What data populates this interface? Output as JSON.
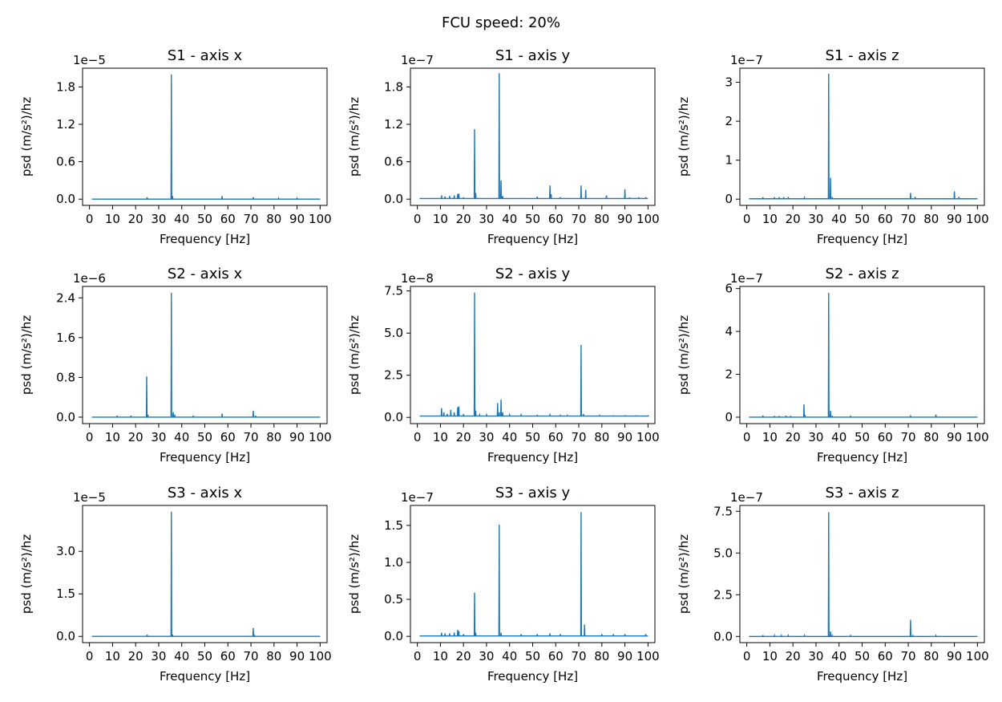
{
  "figure": {
    "suptitle": "FCU speed: 20%"
  },
  "style": {
    "line_color": "#1f77b4",
    "axis_color": "#000000",
    "background": "#ffffff"
  },
  "chart_data": [
    {
      "type": "line",
      "title": "S1 - axis x",
      "xlabel": "Frequency [Hz]",
      "ylabel": "psd (m/s²)/hz",
      "xlim": [
        -3,
        103
      ],
      "ylim": [
        -0.1,
        2.1
      ],
      "y_multiplier": "1e−5",
      "x_ticks": [
        0,
        10,
        20,
        30,
        40,
        50,
        60,
        70,
        80,
        90,
        100
      ],
      "y_ticks": [
        0.0,
        0.6,
        1.2,
        1.8
      ],
      "y_tick_labels": [
        "0.0",
        "0.6",
        "1.2",
        "1.8"
      ],
      "grid": false,
      "series": [
        {
          "baseline": 0.0,
          "peaks": [
            [
              25,
              0.03
            ],
            [
              35.5,
              2.0
            ],
            [
              36,
              0.05
            ],
            [
              57.5,
              0.05
            ],
            [
              71,
              0.03
            ],
            [
              82,
              0.015
            ],
            [
              90,
              0.015
            ]
          ]
        }
      ]
    },
    {
      "type": "line",
      "title": "S1 - axis y",
      "xlabel": "Frequency [Hz]",
      "ylabel": "psd (m/s²)/hz",
      "xlim": [
        -3,
        103
      ],
      "ylim": [
        -0.1,
        2.1
      ],
      "y_multiplier": "1e−7",
      "x_ticks": [
        0,
        10,
        20,
        30,
        40,
        50,
        60,
        70,
        80,
        90,
        100
      ],
      "y_ticks": [
        0.0,
        0.6,
        1.2,
        1.8
      ],
      "y_tick_labels": [
        "0.0",
        "0.6",
        "1.2",
        "1.8"
      ],
      "grid": false,
      "series": [
        {
          "baseline": 0.01,
          "peaks": [
            [
              10.5,
              0.06
            ],
            [
              12,
              0.04
            ],
            [
              14,
              0.05
            ],
            [
              16,
              0.06
            ],
            [
              17.5,
              0.08
            ],
            [
              18,
              0.09
            ],
            [
              20,
              0.03
            ],
            [
              24.8,
              1.12
            ],
            [
              25.3,
              0.1
            ],
            [
              35.5,
              2.02
            ],
            [
              36.3,
              0.3
            ],
            [
              37,
              0.05
            ],
            [
              52,
              0.04
            ],
            [
              57.5,
              0.22
            ],
            [
              58,
              0.08
            ],
            [
              62,
              0.03
            ],
            [
              71,
              0.22
            ],
            [
              73,
              0.15
            ],
            [
              82,
              0.06
            ],
            [
              90,
              0.16
            ],
            [
              92,
              0.03
            ],
            [
              96,
              0.03
            ],
            [
              99,
              0.03
            ]
          ]
        }
      ]
    },
    {
      "type": "line",
      "title": "S1 - axis z",
      "xlabel": "Frequency [Hz]",
      "ylabel": "psd (m/s²)/hz",
      "xlim": [
        -3,
        103
      ],
      "ylim": [
        -0.16,
        3.36
      ],
      "y_multiplier": "1e−7",
      "x_ticks": [
        0,
        10,
        20,
        30,
        40,
        50,
        60,
        70,
        80,
        90,
        100
      ],
      "y_ticks": [
        0,
        1,
        2,
        3
      ],
      "y_tick_labels": [
        "0",
        "1",
        "2",
        "3"
      ],
      "grid": false,
      "series": [
        {
          "baseline": 0.01,
          "peaks": [
            [
              7,
              0.05
            ],
            [
              12,
              0.05
            ],
            [
              14,
              0.05
            ],
            [
              16,
              0.05
            ],
            [
              18,
              0.06
            ],
            [
              25,
              0.04
            ],
            [
              35.5,
              3.22
            ],
            [
              36.3,
              0.55
            ],
            [
              37,
              0.05
            ],
            [
              71,
              0.16
            ],
            [
              73,
              0.06
            ],
            [
              90,
              0.2
            ],
            [
              92,
              0.06
            ]
          ]
        }
      ]
    },
    {
      "type": "line",
      "title": "S2 - axis x",
      "xlabel": "Frequency [Hz]",
      "ylabel": "psd (m/s²)/hz",
      "xlim": [
        -3,
        103
      ],
      "ylim": [
        -0.13,
        2.63
      ],
      "y_multiplier": "1e−6",
      "x_ticks": [
        0,
        10,
        20,
        30,
        40,
        50,
        60,
        70,
        80,
        90,
        100
      ],
      "y_ticks": [
        0.0,
        0.8,
        1.6,
        2.4
      ],
      "y_tick_labels": [
        "0.0",
        "0.8",
        "1.6",
        "2.4"
      ],
      "grid": false,
      "series": [
        {
          "baseline": 0.0,
          "peaks": [
            [
              12,
              0.03
            ],
            [
              18,
              0.03
            ],
            [
              24.8,
              0.82
            ],
            [
              25.3,
              0.05
            ],
            [
              35.5,
              2.5
            ],
            [
              36.3,
              0.1
            ],
            [
              37,
              0.05
            ],
            [
              45,
              0.03
            ],
            [
              57.5,
              0.07
            ],
            [
              71,
              0.13
            ],
            [
              72,
              0.03
            ]
          ]
        }
      ]
    },
    {
      "type": "line",
      "title": "S2 - axis y",
      "xlabel": "Frequency [Hz]",
      "ylabel": "psd (m/s²)/hz",
      "xlim": [
        -3,
        103
      ],
      "ylim": [
        -0.37,
        7.77
      ],
      "y_multiplier": "1e−8",
      "x_ticks": [
        0,
        10,
        20,
        30,
        40,
        50,
        60,
        70,
        80,
        90,
        100
      ],
      "y_ticks": [
        0.0,
        2.5,
        5.0,
        7.5
      ],
      "y_tick_labels": [
        "0.0",
        "2.5",
        "5.0",
        "7.5"
      ],
      "grid": false,
      "series": [
        {
          "baseline": 0.08,
          "peaks": [
            [
              10.5,
              0.55
            ],
            [
              11.5,
              0.3
            ],
            [
              13,
              0.2
            ],
            [
              14.5,
              0.45
            ],
            [
              16,
              0.3
            ],
            [
              17.5,
              0.6
            ],
            [
              18,
              0.65
            ],
            [
              20,
              0.2
            ],
            [
              24.8,
              7.4
            ],
            [
              25.3,
              0.4
            ],
            [
              27,
              0.15
            ],
            [
              30,
              0.15
            ],
            [
              34.8,
              0.85
            ],
            [
              35.5,
              0.3
            ],
            [
              36.3,
              1.05
            ],
            [
              37,
              0.3
            ],
            [
              40,
              0.15
            ],
            [
              45,
              0.15
            ],
            [
              52,
              0.12
            ],
            [
              57.5,
              0.15
            ],
            [
              62,
              0.12
            ],
            [
              65,
              0.12
            ],
            [
              71,
              4.3
            ],
            [
              72,
              0.2
            ],
            [
              79,
              0.12
            ],
            [
              85,
              0.1
            ],
            [
              90,
              0.1
            ],
            [
              95,
              0.1
            ],
            [
              100,
              0.1
            ]
          ]
        }
      ]
    },
    {
      "type": "line",
      "title": "S2 - axis z",
      "xlabel": "Frequency [Hz]",
      "ylabel": "psd (m/s²)/hz",
      "xlim": [
        -3,
        103
      ],
      "ylim": [
        -0.3,
        6.1
      ],
      "y_multiplier": "1e−7",
      "x_ticks": [
        0,
        10,
        20,
        30,
        40,
        50,
        60,
        70,
        80,
        90,
        100
      ],
      "y_ticks": [
        0,
        2,
        4,
        6
      ],
      "y_tick_labels": [
        "0",
        "2",
        "4",
        "6"
      ],
      "grid": false,
      "series": [
        {
          "baseline": 0.0,
          "peaks": [
            [
              7,
              0.08
            ],
            [
              12,
              0.06
            ],
            [
              14,
              0.06
            ],
            [
              17,
              0.07
            ],
            [
              19,
              0.06
            ],
            [
              24.8,
              0.6
            ],
            [
              25.3,
              0.05
            ],
            [
              35.5,
              5.8
            ],
            [
              36.3,
              0.3
            ],
            [
              37,
              0.06
            ],
            [
              45,
              0.04
            ],
            [
              71,
              0.05
            ],
            [
              82,
              0.12
            ]
          ]
        }
      ]
    },
    {
      "type": "line",
      "title": "S3 - axis x",
      "xlabel": "Frequency [Hz]",
      "ylabel": "psd (m/s²)/hz",
      "xlim": [
        -3,
        103
      ],
      "ylim": [
        -0.22,
        4.62
      ],
      "y_multiplier": "1e−5",
      "x_ticks": [
        0,
        10,
        20,
        30,
        40,
        50,
        60,
        70,
        80,
        90,
        100
      ],
      "y_ticks": [
        0.0,
        1.5,
        3.0
      ],
      "y_tick_labels": [
        "0.0",
        "1.5",
        "3.0"
      ],
      "grid": false,
      "series": [
        {
          "baseline": 0.0,
          "peaks": [
            [
              25,
              0.06
            ],
            [
              35.5,
              4.4
            ],
            [
              36,
              0.06
            ],
            [
              71,
              0.3
            ],
            [
              71.5,
              0.05
            ]
          ]
        }
      ]
    },
    {
      "type": "line",
      "title": "S3 - axis y",
      "xlabel": "Frequency [Hz]",
      "ylabel": "psd (m/s²)/hz",
      "xlim": [
        -3,
        103
      ],
      "ylim": [
        -0.085,
        1.77
      ],
      "y_multiplier": "1e−7",
      "x_ticks": [
        0,
        10,
        20,
        30,
        40,
        50,
        60,
        70,
        80,
        90,
        100
      ],
      "y_ticks": [
        0.0,
        0.5,
        1.0,
        1.5
      ],
      "y_tick_labels": [
        "0.0",
        "0.5",
        "1.0",
        "1.5"
      ],
      "grid": false,
      "series": [
        {
          "baseline": 0.005,
          "peaks": [
            [
              10.5,
              0.05
            ],
            [
              12,
              0.04
            ],
            [
              14,
              0.04
            ],
            [
              16,
              0.05
            ],
            [
              17.5,
              0.09
            ],
            [
              18,
              0.07
            ],
            [
              20,
              0.03
            ],
            [
              24.8,
              0.59
            ],
            [
              25.3,
              0.05
            ],
            [
              35.5,
              1.51
            ],
            [
              36.3,
              0.05
            ],
            [
              45,
              0.03
            ],
            [
              52,
              0.03
            ],
            [
              57.5,
              0.04
            ],
            [
              62,
              0.03
            ],
            [
              71,
              1.68
            ],
            [
              72.5,
              0.16
            ],
            [
              80,
              0.03
            ],
            [
              85,
              0.03
            ],
            [
              90,
              0.03
            ],
            [
              99,
              0.03
            ]
          ]
        }
      ]
    },
    {
      "type": "line",
      "title": "S3 - axis z",
      "xlabel": "Frequency [Hz]",
      "ylabel": "psd (m/s²)/hz",
      "xlim": [
        -3,
        103
      ],
      "ylim": [
        -0.37,
        7.85
      ],
      "y_multiplier": "1e−7",
      "x_ticks": [
        0,
        10,
        20,
        30,
        40,
        50,
        60,
        70,
        80,
        90,
        100
      ],
      "y_ticks": [
        0.0,
        2.5,
        5.0,
        7.5
      ],
      "y_tick_labels": [
        "0.0",
        "2.5",
        "5.0",
        "7.5"
      ],
      "grid": false,
      "series": [
        {
          "baseline": 0.0,
          "peaks": [
            [
              7,
              0.08
            ],
            [
              12,
              0.06
            ],
            [
              15,
              0.06
            ],
            [
              18,
              0.06
            ],
            [
              25,
              0.06
            ],
            [
              35.5,
              7.45
            ],
            [
              36.3,
              0.3
            ],
            [
              37,
              0.06
            ],
            [
              45,
              0.05
            ],
            [
              71,
              1.0
            ],
            [
              72,
              0.05
            ],
            [
              82,
              0.05
            ]
          ]
        }
      ]
    }
  ]
}
